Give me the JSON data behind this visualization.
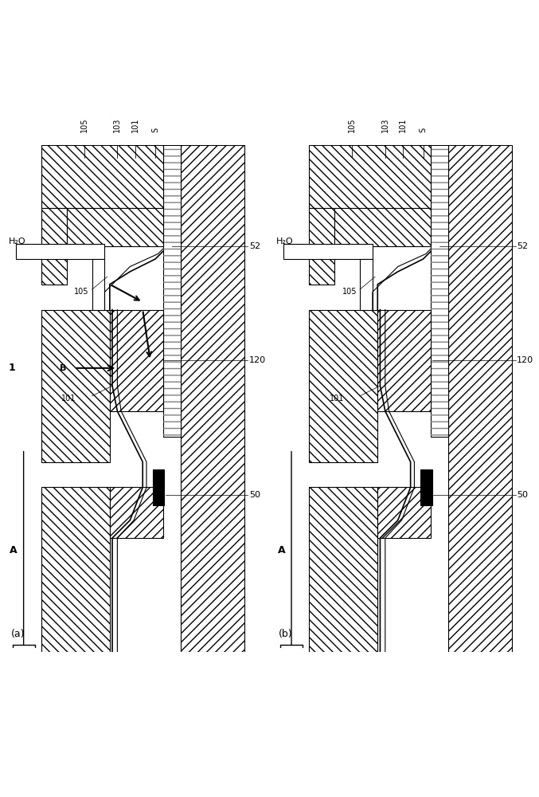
{
  "fig_width": 6.77,
  "fig_height": 10.0,
  "dpi": 100,
  "bg_color": "#ffffff",
  "labels_top_left": [
    "105",
    "103",
    "101",
    "S"
  ],
  "labels_top_right": [
    "105",
    "103",
    "101",
    "S"
  ],
  "label_a": "A",
  "label_b_left": "(a)",
  "label_b_right": "(b)",
  "label_1": "1",
  "label_B": "B",
  "label_52": "52",
  "label_120": "120",
  "label_50": "50",
  "label_105_mid": "105",
  "label_101_mid": "101",
  "label_h2o": "H₂O"
}
